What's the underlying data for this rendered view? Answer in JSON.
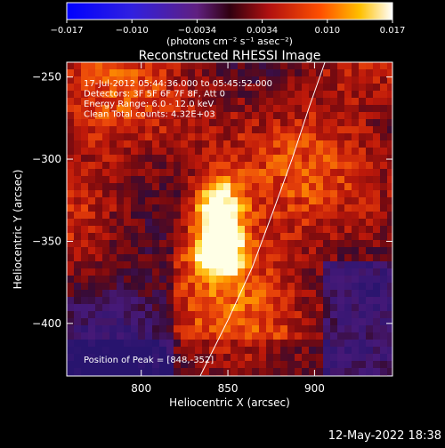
{
  "colorbar": {
    "ticks": [
      "−0.017",
      "−0.010",
      "−0.0034",
      "0.0034",
      "0.010",
      "0.017"
    ],
    "unit_label": "(photons cm⁻² s⁻¹ asec⁻²)",
    "range": [
      -0.017,
      0.017
    ]
  },
  "chart_data": {
    "type": "heatmap",
    "title": "Reconstructed RHESSI Image",
    "xlabel": "Heliocentric X (arcsec)",
    "ylabel": "Heliocentric Y (arcsec)",
    "xlim": [
      757,
      945
    ],
    "ylim": [
      -432,
      -241
    ],
    "x_ticks": [
      800,
      850,
      900
    ],
    "y_ticks": [
      -250,
      -300,
      -350,
      -400
    ],
    "x_tick_labels": [
      "800",
      "850",
      "900"
    ],
    "y_tick_labels": [
      "−250",
      "−300",
      "−350",
      "−400"
    ],
    "annotations": [
      "17-Jul-2012 05:44:36.000 to 05:45:52.000",
      "Detectors: 3F 5F 6F 7F 8F, Att 0",
      "Energy Range: 6.0 - 12.0 keV",
      "Clean     Total counts: 4.32E+03"
    ],
    "peak_label": "Position of Peak = [848,-352]",
    "peak": [
      848,
      -352
    ],
    "limb_curve": [
      [
        834,
        -432
      ],
      [
        850,
        -398
      ],
      [
        864,
        -366
      ],
      [
        876,
        -332
      ],
      [
        887,
        -300
      ],
      [
        897,
        -268
      ],
      [
        906,
        -241
      ]
    ]
  },
  "footer": {
    "timestamp": "12-May-2022 18:38"
  }
}
